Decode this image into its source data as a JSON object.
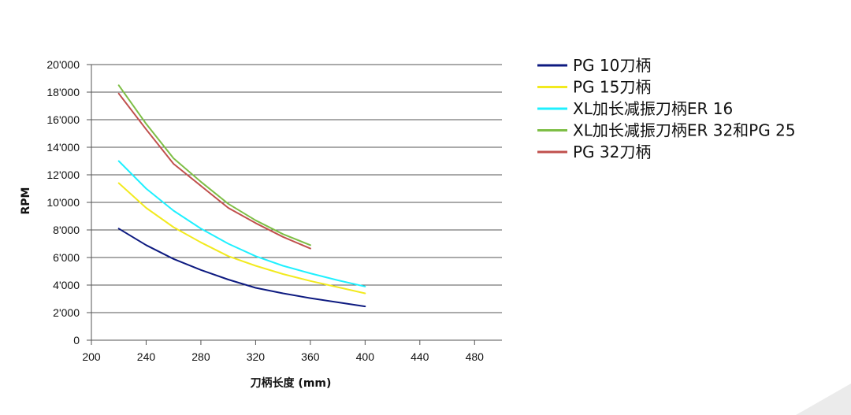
{
  "chart_data": {
    "type": "line",
    "title": "",
    "xlabel": "刀柄长度 (mm)",
    "ylabel": "RPM",
    "xlim": [
      200,
      500
    ],
    "ylim": [
      0,
      20000
    ],
    "x_ticks": [
      200,
      240,
      280,
      320,
      360,
      400,
      440,
      480
    ],
    "x_tick_labels": [
      "200",
      "240",
      "280",
      "320",
      "360",
      "400",
      "440",
      "480"
    ],
    "y_ticks": [
      0,
      2000,
      4000,
      6000,
      8000,
      10000,
      12000,
      14000,
      16000,
      18000,
      20000
    ],
    "y_tick_labels": [
      "0",
      "2'000",
      "4'000",
      "6'000",
      "8'000",
      "10'000",
      "12'000",
      "14'000",
      "16'000",
      "18'000",
      "20'000"
    ],
    "grid": "horizontal",
    "legend_position": "right",
    "series": [
      {
        "name": "PG 10刀柄",
        "color": "#0d1a80",
        "x": [
          220,
          240,
          260,
          280,
          300,
          320,
          340,
          360,
          380,
          400
        ],
        "y": [
          8100,
          6900,
          5900,
          5100,
          4400,
          3800,
          3400,
          3050,
          2750,
          2450
        ]
      },
      {
        "name": "PG 15刀柄",
        "color": "#f2ea1f",
        "x": [
          220,
          240,
          260,
          280,
          300,
          320,
          340,
          360,
          380,
          400
        ],
        "y": [
          11400,
          9600,
          8200,
          7100,
          6100,
          5400,
          4800,
          4300,
          3850,
          3400
        ]
      },
      {
        "name": "XL加长减振刀柄ER 16",
        "color": "#1ff0ff",
        "x": [
          220,
          240,
          260,
          280,
          300,
          320,
          340,
          360,
          380,
          400
        ],
        "y": [
          13000,
          11000,
          9400,
          8100,
          7000,
          6100,
          5400,
          4850,
          4350,
          3900
        ]
      },
      {
        "name": "XL加长减振刀柄ER 32和PG 25",
        "color": "#7dbe45",
        "x": [
          220,
          240,
          260,
          280,
          300,
          320,
          340,
          360
        ],
        "y": [
          18500,
          15700,
          13200,
          11500,
          9900,
          8700,
          7700,
          6900
        ]
      },
      {
        "name": "PG 32刀柄",
        "color": "#c0504d",
        "x": [
          220,
          240,
          260,
          280,
          300,
          320,
          340,
          360
        ],
        "y": [
          17900,
          15300,
          12800,
          11200,
          9600,
          8500,
          7500,
          6650
        ]
      }
    ]
  }
}
